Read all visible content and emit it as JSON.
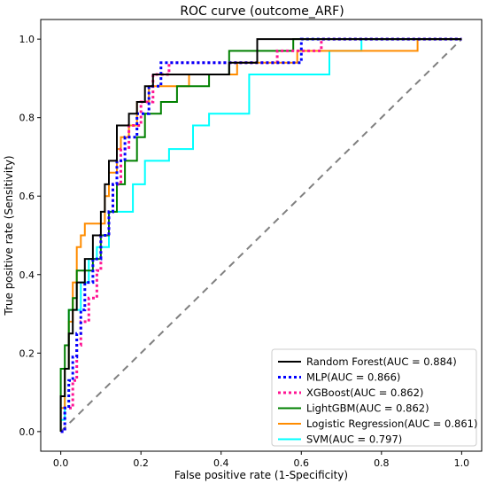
{
  "chart_data": {
    "type": "line",
    "title": "ROC curve (outcome_ARF)",
    "xlabel": "False positive rate (1-Specificity)",
    "ylabel": "True positive rate (Sensitivity)",
    "xlim": [
      -0.05,
      1.05
    ],
    "ylim": [
      -0.05,
      1.05
    ],
    "xticks": [
      "0.0",
      "0.2",
      "0.4",
      "0.6",
      "0.8",
      "1.0"
    ],
    "yticks": [
      "0.0",
      "0.2",
      "0.4",
      "0.6",
      "0.8",
      "1.0"
    ],
    "grid": false,
    "legend_position": "lower-right",
    "reference_line": {
      "color": "#808080",
      "style": "dashed",
      "points": [
        [
          0,
          0
        ],
        [
          1,
          1
        ]
      ]
    },
    "series": [
      {
        "name": "Random Forest(AUC = 0.884)",
        "color": "#000000",
        "style": "solid",
        "points": [
          [
            0,
            0
          ],
          [
            0,
            0.09
          ],
          [
            0.01,
            0.09
          ],
          [
            0.01,
            0.16
          ],
          [
            0.02,
            0.16
          ],
          [
            0.02,
            0.25
          ],
          [
            0.03,
            0.25
          ],
          [
            0.03,
            0.31
          ],
          [
            0.04,
            0.31
          ],
          [
            0.04,
            0.38
          ],
          [
            0.06,
            0.38
          ],
          [
            0.06,
            0.44
          ],
          [
            0.08,
            0.44
          ],
          [
            0.08,
            0.5
          ],
          [
            0.1,
            0.5
          ],
          [
            0.1,
            0.56
          ],
          [
            0.11,
            0.56
          ],
          [
            0.11,
            0.63
          ],
          [
            0.12,
            0.63
          ],
          [
            0.12,
            0.69
          ],
          [
            0.14,
            0.69
          ],
          [
            0.14,
            0.78
          ],
          [
            0.17,
            0.78
          ],
          [
            0.17,
            0.81
          ],
          [
            0.19,
            0.81
          ],
          [
            0.19,
            0.84
          ],
          [
            0.21,
            0.84
          ],
          [
            0.21,
            0.88
          ],
          [
            0.23,
            0.88
          ],
          [
            0.23,
            0.91
          ],
          [
            0.42,
            0.91
          ],
          [
            0.42,
            0.94
          ],
          [
            0.49,
            0.94
          ],
          [
            0.49,
            1.0
          ],
          [
            1,
            1.0
          ]
        ]
      },
      {
        "name": "MLP(AUC = 0.866)",
        "color": "#0000ff",
        "style": "dotted",
        "points": [
          [
            0,
            0
          ],
          [
            0.01,
            0
          ],
          [
            0.01,
            0.06
          ],
          [
            0.02,
            0.06
          ],
          [
            0.02,
            0.13
          ],
          [
            0.03,
            0.13
          ],
          [
            0.03,
            0.19
          ],
          [
            0.04,
            0.19
          ],
          [
            0.04,
            0.25
          ],
          [
            0.05,
            0.25
          ],
          [
            0.05,
            0.31
          ],
          [
            0.06,
            0.31
          ],
          [
            0.06,
            0.38
          ],
          [
            0.08,
            0.38
          ],
          [
            0.08,
            0.44
          ],
          [
            0.1,
            0.44
          ],
          [
            0.1,
            0.5
          ],
          [
            0.12,
            0.5
          ],
          [
            0.12,
            0.56
          ],
          [
            0.13,
            0.56
          ],
          [
            0.13,
            0.63
          ],
          [
            0.14,
            0.63
          ],
          [
            0.14,
            0.69
          ],
          [
            0.16,
            0.69
          ],
          [
            0.16,
            0.75
          ],
          [
            0.19,
            0.75
          ],
          [
            0.19,
            0.81
          ],
          [
            0.22,
            0.81
          ],
          [
            0.22,
            0.88
          ],
          [
            0.25,
            0.88
          ],
          [
            0.25,
            0.94
          ],
          [
            0.6,
            0.94
          ],
          [
            0.6,
            1.0
          ],
          [
            1,
            1.0
          ]
        ]
      },
      {
        "name": "XGBoost(AUC = 0.862)",
        "color": "#ff1493",
        "style": "dotted",
        "points": [
          [
            0,
            0
          ],
          [
            0.01,
            0
          ],
          [
            0.01,
            0.06
          ],
          [
            0.03,
            0.06
          ],
          [
            0.03,
            0.13
          ],
          [
            0.04,
            0.13
          ],
          [
            0.04,
            0.22
          ],
          [
            0.05,
            0.22
          ],
          [
            0.05,
            0.28
          ],
          [
            0.07,
            0.28
          ],
          [
            0.07,
            0.34
          ],
          [
            0.09,
            0.34
          ],
          [
            0.09,
            0.41
          ],
          [
            0.1,
            0.41
          ],
          [
            0.1,
            0.5
          ],
          [
            0.12,
            0.5
          ],
          [
            0.12,
            0.56
          ],
          [
            0.13,
            0.56
          ],
          [
            0.13,
            0.63
          ],
          [
            0.15,
            0.63
          ],
          [
            0.15,
            0.72
          ],
          [
            0.17,
            0.72
          ],
          [
            0.17,
            0.78
          ],
          [
            0.2,
            0.78
          ],
          [
            0.2,
            0.84
          ],
          [
            0.23,
            0.84
          ],
          [
            0.23,
            0.91
          ],
          [
            0.27,
            0.91
          ],
          [
            0.27,
            0.94
          ],
          [
            0.54,
            0.94
          ],
          [
            0.54,
            0.97
          ],
          [
            0.65,
            0.97
          ],
          [
            0.65,
            1.0
          ],
          [
            1,
            1.0
          ]
        ]
      },
      {
        "name": "LightGBM(AUC = 0.862)",
        "color": "#008000",
        "style": "solid",
        "points": [
          [
            0,
            0
          ],
          [
            0,
            0.16
          ],
          [
            0.01,
            0.16
          ],
          [
            0.01,
            0.22
          ],
          [
            0.02,
            0.22
          ],
          [
            0.02,
            0.31
          ],
          [
            0.03,
            0.31
          ],
          [
            0.03,
            0.34
          ],
          [
            0.04,
            0.34
          ],
          [
            0.04,
            0.41
          ],
          [
            0.08,
            0.41
          ],
          [
            0.08,
            0.44
          ],
          [
            0.1,
            0.44
          ],
          [
            0.1,
            0.5
          ],
          [
            0.12,
            0.5
          ],
          [
            0.12,
            0.56
          ],
          [
            0.14,
            0.56
          ],
          [
            0.14,
            0.63
          ],
          [
            0.16,
            0.63
          ],
          [
            0.16,
            0.69
          ],
          [
            0.19,
            0.69
          ],
          [
            0.19,
            0.75
          ],
          [
            0.21,
            0.75
          ],
          [
            0.21,
            0.81
          ],
          [
            0.25,
            0.81
          ],
          [
            0.25,
            0.84
          ],
          [
            0.29,
            0.84
          ],
          [
            0.29,
            0.88
          ],
          [
            0.37,
            0.88
          ],
          [
            0.37,
            0.91
          ],
          [
            0.42,
            0.91
          ],
          [
            0.42,
            0.97
          ],
          [
            0.58,
            0.97
          ],
          [
            0.58,
            1.0
          ],
          [
            1,
            1.0
          ]
        ]
      },
      {
        "name": "Logistic Regression(AUC = 0.861)",
        "color": "#ff8c00",
        "style": "solid",
        "points": [
          [
            0,
            0
          ],
          [
            0,
            0.06
          ],
          [
            0.01,
            0.06
          ],
          [
            0.01,
            0.16
          ],
          [
            0.02,
            0.16
          ],
          [
            0.02,
            0.28
          ],
          [
            0.03,
            0.28
          ],
          [
            0.03,
            0.38
          ],
          [
            0.04,
            0.38
          ],
          [
            0.04,
            0.47
          ],
          [
            0.05,
            0.47
          ],
          [
            0.05,
            0.5
          ],
          [
            0.06,
            0.5
          ],
          [
            0.06,
            0.53
          ],
          [
            0.11,
            0.53
          ],
          [
            0.11,
            0.6
          ],
          [
            0.12,
            0.6
          ],
          [
            0.12,
            0.66
          ],
          [
            0.14,
            0.66
          ],
          [
            0.14,
            0.72
          ],
          [
            0.15,
            0.72
          ],
          [
            0.15,
            0.75
          ],
          [
            0.17,
            0.75
          ],
          [
            0.17,
            0.78
          ],
          [
            0.19,
            0.78
          ],
          [
            0.19,
            0.84
          ],
          [
            0.22,
            0.84
          ],
          [
            0.22,
            0.88
          ],
          [
            0.32,
            0.88
          ],
          [
            0.32,
            0.91
          ],
          [
            0.44,
            0.91
          ],
          [
            0.44,
            0.94
          ],
          [
            0.59,
            0.94
          ],
          [
            0.59,
            0.97
          ],
          [
            0.75,
            0.97
          ],
          [
            0.75,
            0.97
          ],
          [
            0.89,
            0.97
          ],
          [
            0.89,
            1.0
          ],
          [
            1,
            1.0
          ]
        ]
      },
      {
        "name": "SVM(AUC = 0.797)",
        "color": "#00ffff",
        "style": "solid",
        "points": [
          [
            0,
            0
          ],
          [
            0,
            0.03
          ],
          [
            0.01,
            0.03
          ],
          [
            0.01,
            0.16
          ],
          [
            0.02,
            0.16
          ],
          [
            0.02,
            0.31
          ],
          [
            0.05,
            0.31
          ],
          [
            0.05,
            0.38
          ],
          [
            0.07,
            0.38
          ],
          [
            0.07,
            0.44
          ],
          [
            0.09,
            0.44
          ],
          [
            0.09,
            0.47
          ],
          [
            0.12,
            0.47
          ],
          [
            0.12,
            0.56
          ],
          [
            0.18,
            0.56
          ],
          [
            0.18,
            0.63
          ],
          [
            0.21,
            0.63
          ],
          [
            0.21,
            0.69
          ],
          [
            0.27,
            0.69
          ],
          [
            0.27,
            0.72
          ],
          [
            0.33,
            0.72
          ],
          [
            0.33,
            0.78
          ],
          [
            0.37,
            0.78
          ],
          [
            0.37,
            0.81
          ],
          [
            0.47,
            0.81
          ],
          [
            0.47,
            0.91
          ],
          [
            0.67,
            0.91
          ],
          [
            0.67,
            0.97
          ],
          [
            0.75,
            0.97
          ],
          [
            0.75,
            1.0
          ],
          [
            1,
            1.0
          ]
        ]
      }
    ]
  }
}
